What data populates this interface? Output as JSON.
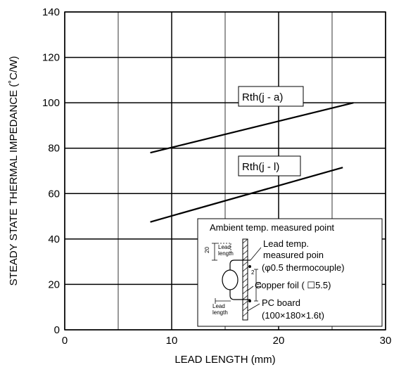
{
  "chart_data": {
    "type": "line",
    "title": "",
    "xlabel": "LEAD LENGTH (mm)",
    "ylabel": "STEADY STATE THERMAL IMPEDANCE (˚C/W)",
    "xlim": [
      0,
      30
    ],
    "ylim": [
      0,
      140
    ],
    "xticks": [
      0,
      10,
      20,
      30
    ],
    "yticks": [
      0,
      20,
      40,
      60,
      80,
      100,
      120,
      140
    ],
    "grid": true,
    "series": [
      {
        "name": "Rth(j - a)",
        "x": [
          8,
          27
        ],
        "y": [
          78,
          100
        ]
      },
      {
        "name": "Rth(j - l)",
        "x": [
          8,
          26
        ],
        "y": [
          47.5,
          71.5
        ]
      }
    ],
    "inset": {
      "title": "Ambient temp. measured point",
      "labels": {
        "lead_temp_1": "Lead temp.",
        "lead_temp_2": "measured poin",
        "thermocouple": "(φ0.5 thermocouple)",
        "copper_foil": "Copper foil ( ☐5.5)",
        "pc_board_1": "PC board",
        "pc_board_2": "(100×180×1.6t)",
        "lead_length_top_1": "Lead",
        "lead_length_top_2": "length",
        "lead_length_bottom_1": "Lead",
        "lead_length_bottom_2": "length",
        "dim_20": "20",
        "dim_15": "15",
        "dim_2": "2"
      }
    }
  }
}
